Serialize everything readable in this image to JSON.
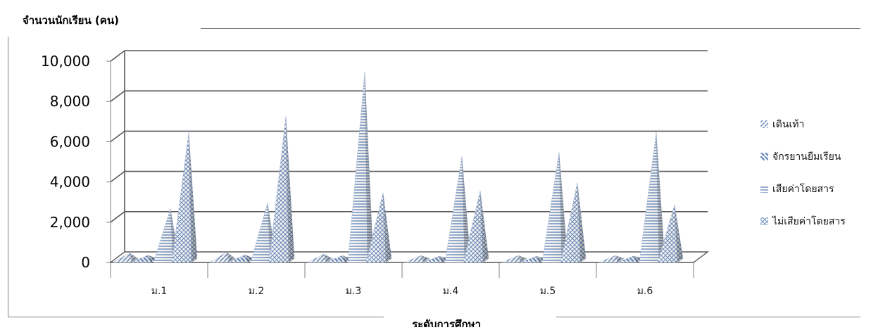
{
  "chart_data": {
    "type": "bar",
    "ylabel": "จำนวนนักเรียน (คน)",
    "xlabel": "ระดับการศึกษา",
    "categories": [
      "ม.1",
      "ม.2",
      "ม.3",
      "ม.4",
      "ม.5",
      "ม.6"
    ],
    "yticks": [
      "0",
      "2,000",
      "4,000",
      "6,000",
      "8,000",
      "10,000"
    ],
    "ylim": [
      0,
      10000
    ],
    "grid": true,
    "legend_position": "right",
    "series": [
      {
        "name": "เดินเท้า",
        "values": [
          200,
          250,
          150,
          80,
          80,
          80
        ]
      },
      {
        "name": "จักรยานยืมเรียน",
        "values": [
          100,
          120,
          80,
          50,
          50,
          60
        ]
      },
      {
        "name": "เสียค่าโดยสาร",
        "values": [
          2400,
          2700,
          9200,
          5000,
          5200,
          6200
        ]
      },
      {
        "name": "ไม่เสียค่าโดยสาร",
        "values": [
          6200,
          7000,
          3200,
          3300,
          3700,
          2600
        ]
      }
    ],
    "colors": {
      "pattern": "#6f8fbf",
      "grid": "#595959",
      "axis": "#7f7f7f"
    }
  }
}
